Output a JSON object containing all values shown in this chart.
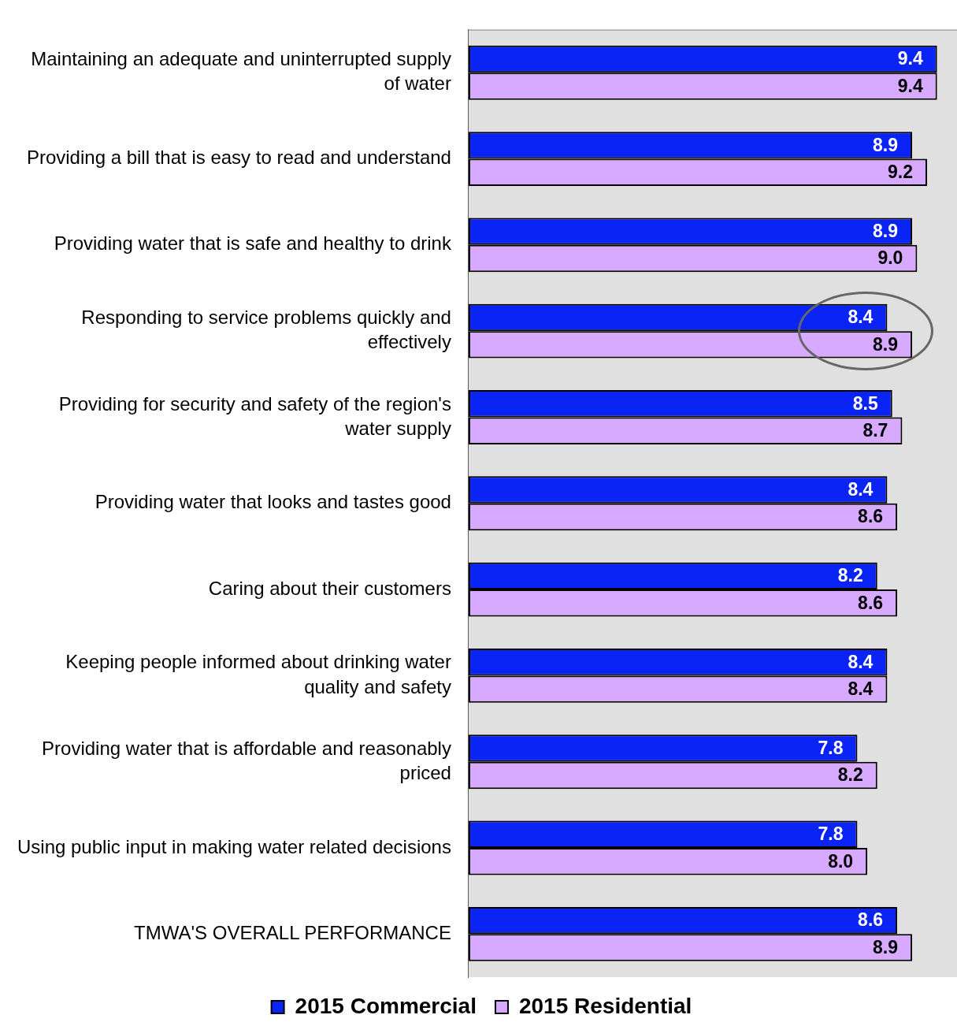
{
  "chart_data": {
    "type": "bar",
    "orientation": "horizontal",
    "categories": [
      "Maintaining an adequate and uninterrupted supply of water",
      "Providing a bill that is easy to read and understand",
      "Providing water that is safe and healthy to drink",
      "Responding to service problems quickly and effectively",
      "Providing for security and safety of the region's water supply",
      "Providing water that looks and tastes good",
      "Caring about their customers",
      "Keeping people informed about drinking water quality and safety",
      "Providing water that is affordable and reasonably priced",
      "Using public input in making water related decisions",
      "TMWA'S OVERALL PERFORMANCE"
    ],
    "series": [
      {
        "name": "2015 Commercial",
        "color": "#0a24f5",
        "values": [
          9.4,
          8.9,
          8.9,
          8.4,
          8.5,
          8.4,
          8.2,
          8.4,
          7.8,
          7.8,
          8.6
        ],
        "value_labels": [
          "9.4",
          "8.9",
          "8.9",
          "8.4",
          "8.5",
          "8.4",
          "8.2",
          "8.4",
          "7.8",
          "7.8",
          "8.6"
        ]
      },
      {
        "name": "2015 Residential",
        "color": "#d7aaff",
        "values": [
          9.4,
          9.2,
          9.0,
          8.9,
          8.7,
          8.6,
          8.6,
          8.4,
          8.2,
          8.0,
          8.9
        ],
        "value_labels": [
          "9.4",
          "9.2",
          "9.0",
          "8.9",
          "8.7",
          "8.6",
          "8.6",
          "8.4",
          "8.2",
          "8.0",
          "8.9"
        ]
      }
    ],
    "xlim": [
      0,
      9.8
    ],
    "tick_labels": "y",
    "grid": false,
    "legend": "bottom"
  }
}
